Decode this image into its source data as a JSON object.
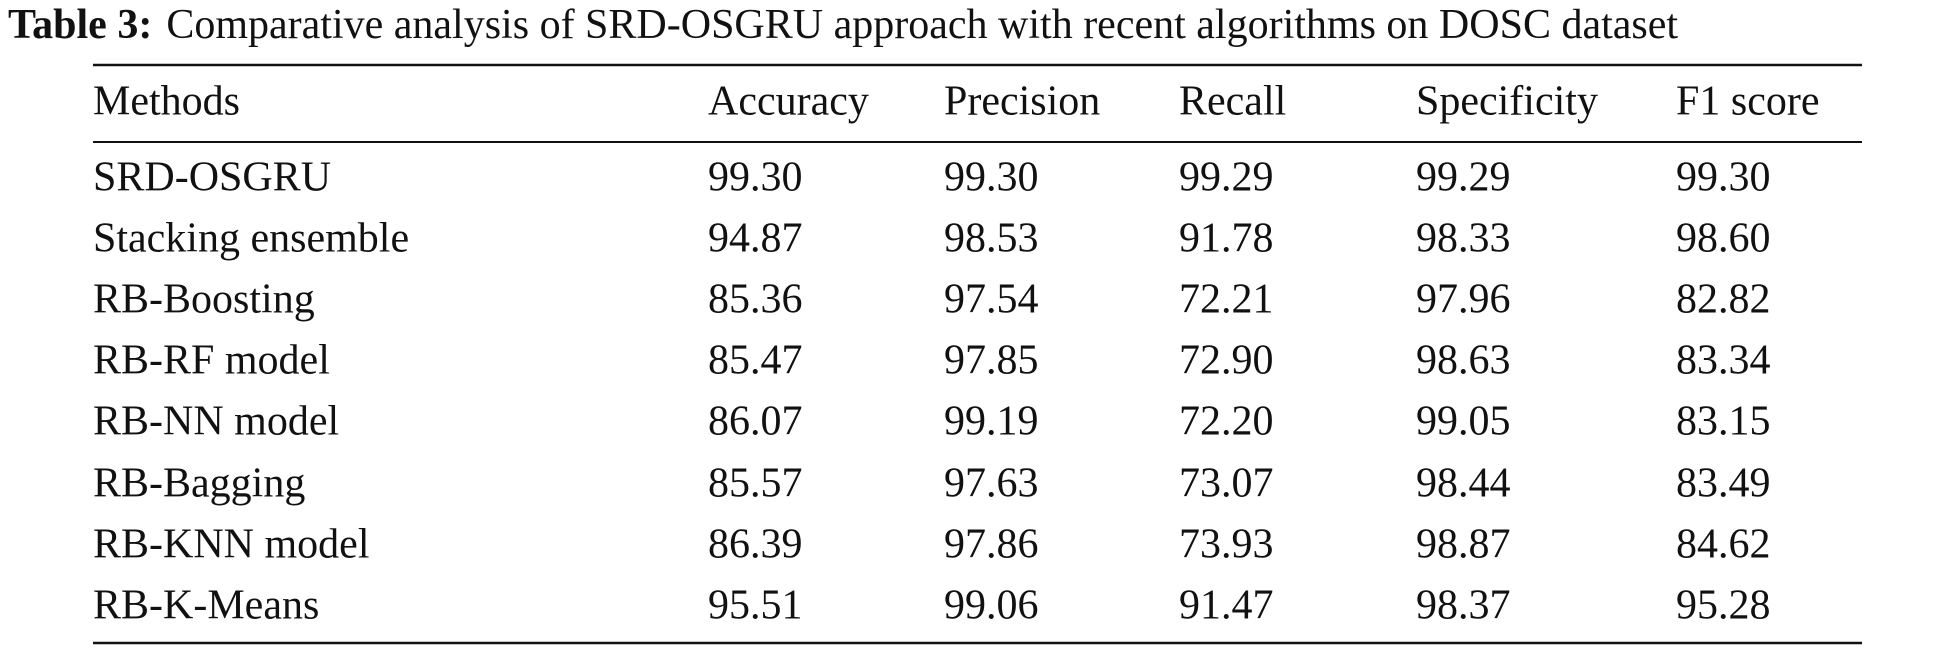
{
  "caption": {
    "label": "Table 3:",
    "text": "Comparative analysis of SRD-OSGRU approach with recent algorithms on DOSC dataset"
  },
  "table": {
    "columns": [
      "Methods",
      "Accuracy",
      "Precision",
      "Recall",
      "Specificity",
      "F1 score"
    ],
    "rows": [
      [
        "SRD-OSGRU",
        "99.30",
        "99.30",
        "99.29",
        "99.29",
        "99.30"
      ],
      [
        "Stacking ensemble",
        "94.87",
        "98.53",
        "91.78",
        "98.33",
        "98.60"
      ],
      [
        "RB-Boosting",
        "85.36",
        "97.54",
        "72.21",
        "97.96",
        "82.82"
      ],
      [
        "RB-RF model",
        "85.47",
        "97.85",
        "72.90",
        "98.63",
        "83.34"
      ],
      [
        "RB-NN model",
        "86.07",
        "99.19",
        "72.20",
        "99.05",
        "83.15"
      ],
      [
        "RB-Bagging",
        "85.57",
        "97.63",
        "73.07",
        "98.44",
        "83.49"
      ],
      [
        "RB-KNN model",
        "86.39",
        "97.86",
        "73.93",
        "98.87",
        "84.62"
      ],
      [
        "RB-K-Means",
        "95.51",
        "99.06",
        "91.47",
        "98.37",
        "95.28"
      ]
    ]
  }
}
